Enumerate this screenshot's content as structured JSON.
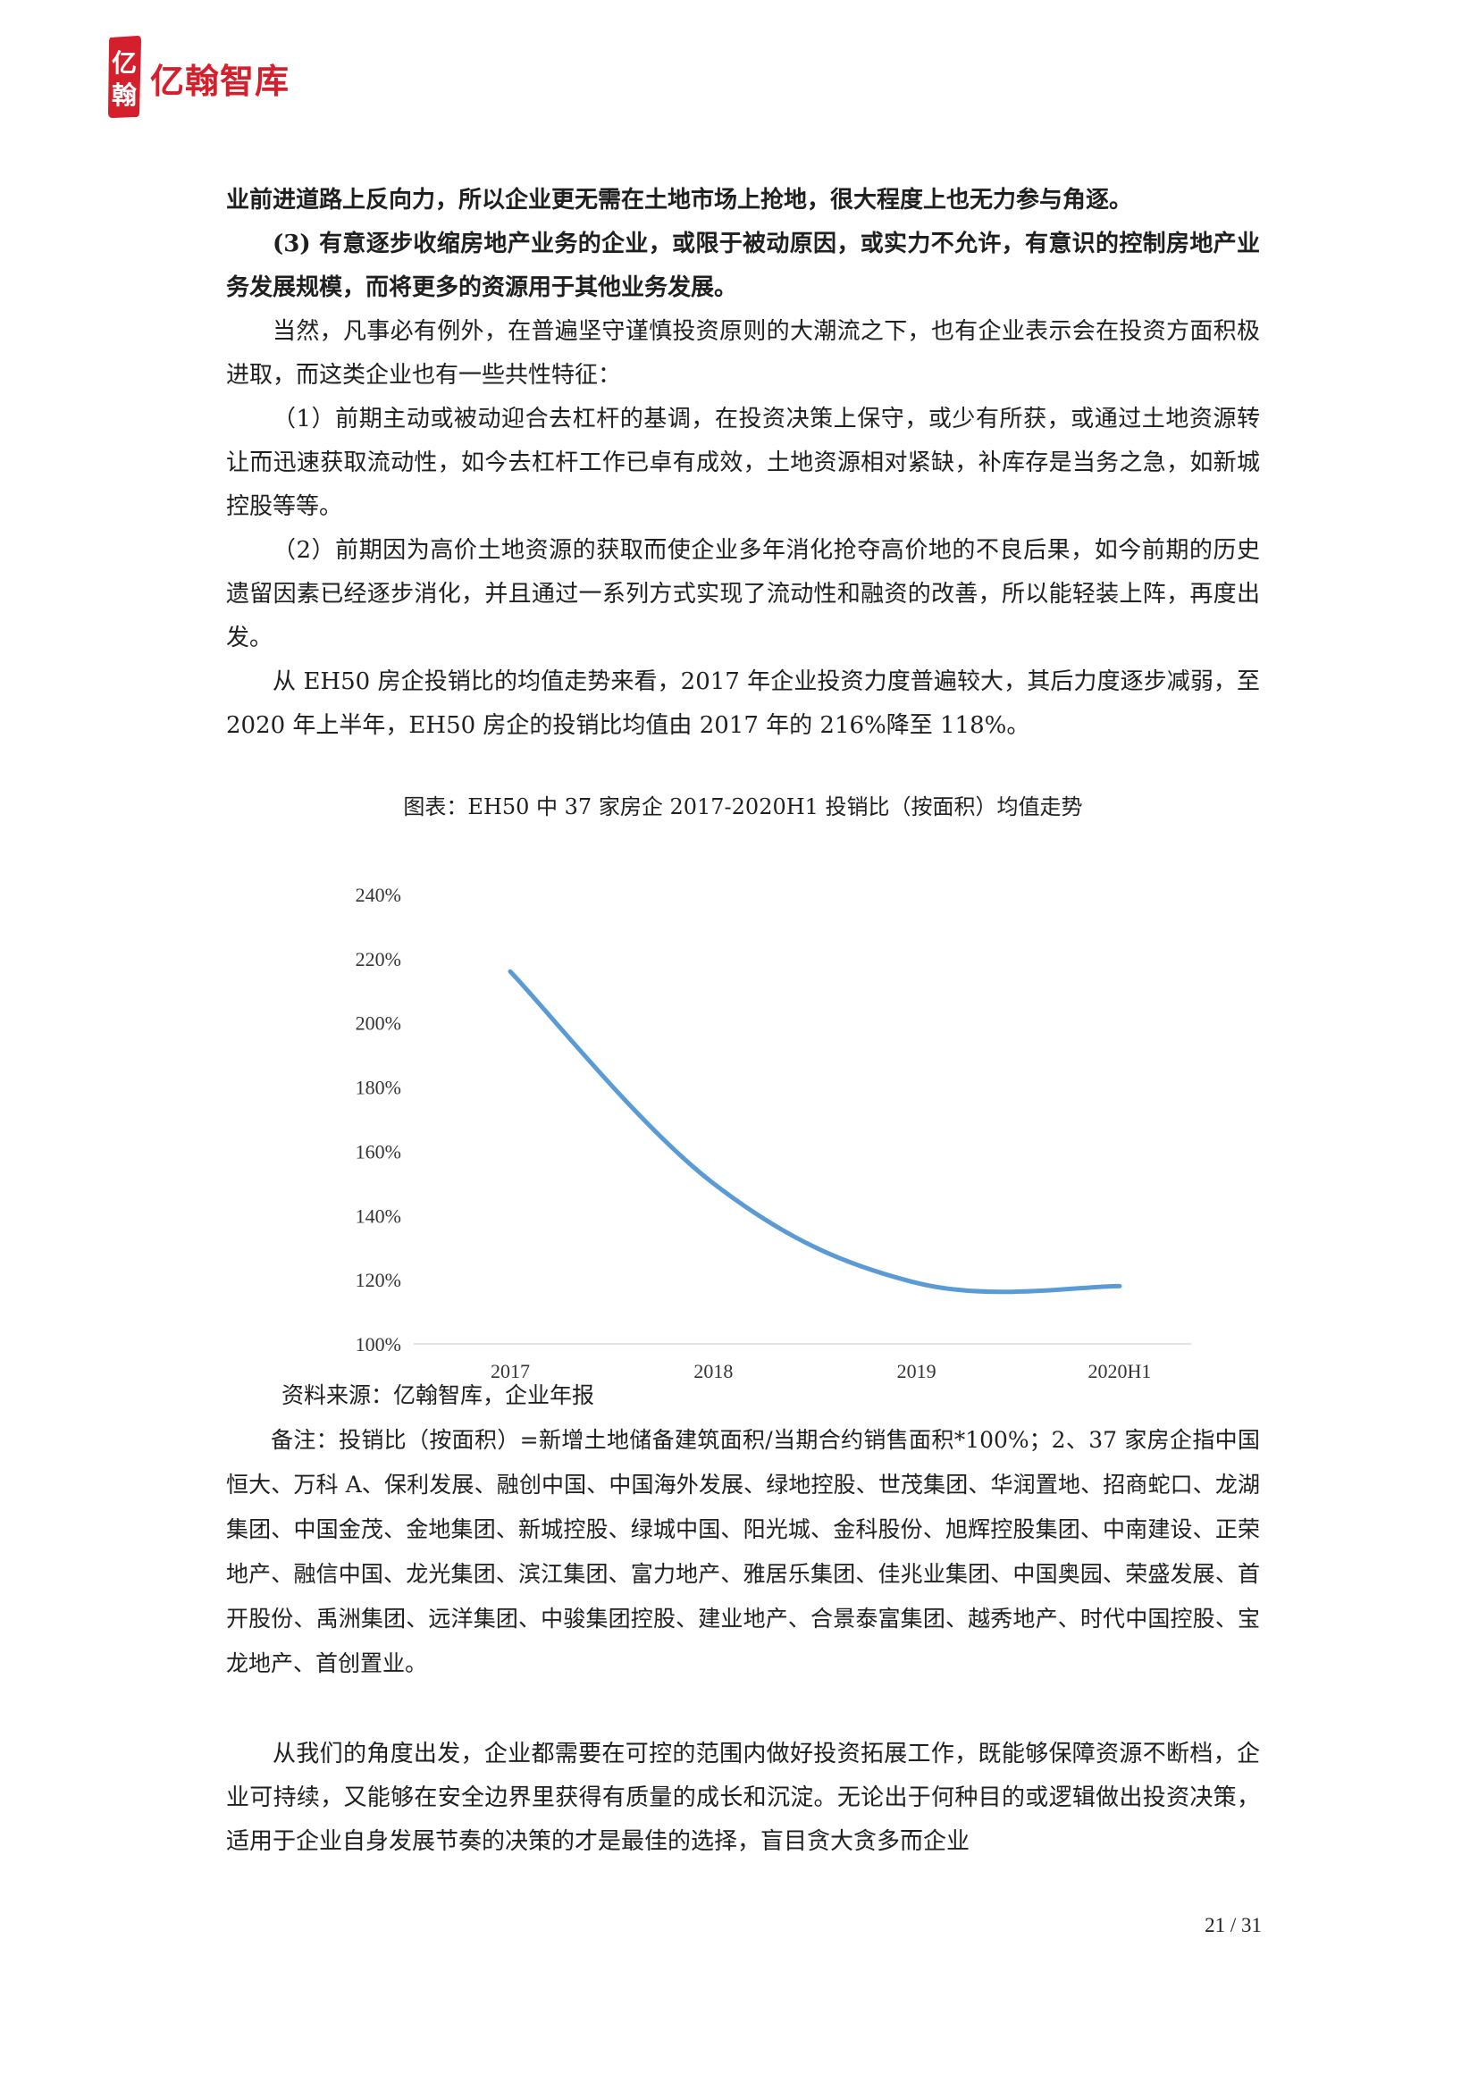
{
  "header": {
    "brand": "亿翰智库",
    "seal_text": "亿翰",
    "brand_color": "#d4202c"
  },
  "body": {
    "para1": "业前进道路上反向力，所以企业更无需在土地市场上抢地，很大程度上也无力参与角逐。",
    "para2": "(3) 有意逐步收缩房地产业务的企业，或限于被动原因，或实力不允许，有意识的控制房地产业务发展规模，而将更多的资源用于其他业务发展。",
    "para3": "当然，凡事必有例外，在普遍坚守谨慎投资原则的大潮流之下，也有企业表示会在投资方面积极进取，而这类企业也有一些共性特征：",
    "para4": "（1）前期主动或被动迎合去杠杆的基调，在投资决策上保守，或少有所获，或通过土地资源转让而迅速获取流动性，如今去杠杆工作已卓有成效，土地资源相对紧缺，补库存是当务之急，如新城控股等等。",
    "para5": "（2）前期因为高价土地资源的获取而使企业多年消化抢夺高价地的不良后果，如今前期的历史遗留因素已经逐步消化，并且通过一系列方式实现了流动性和融资的改善，所以能轻装上阵，再度出发。",
    "para6": "从 EH50 房企投销比的均值走势来看，2017 年企业投资力度普遍较大，其后力度逐步减弱，至 2020 年上半年，EH50 房企的投销比均值由 2017 年的 216%降至 118%。",
    "para7": "从我们的角度出发，企业都需要在可控的范围内做好投资拓展工作，既能够保障资源不断档，企业可持续，又能够在安全边界里获得有质量的成长和沉淀。无论出于何种目的或逻辑做出投资决策，适用于企业自身发展节奏的决策的才是最佳的选择，盲目贪大贪多而企业"
  },
  "chart_caption": "图表：EH50 中 37 家房企 2017-2020H1 投销比（按面积）均值走势",
  "chart_data": {
    "type": "line",
    "title": "",
    "xlabel": "",
    "ylabel": "",
    "categories": [
      "2017",
      "2018",
      "2019",
      "2020H1"
    ],
    "series": [
      {
        "values": [
          216,
          150,
          119,
          118
        ]
      }
    ],
    "ylim": [
      100,
      240
    ],
    "y_ticks": [
      "240%",
      "220%",
      "200%",
      "180%",
      "160%",
      "140%",
      "120%",
      "100%"
    ],
    "y_tick_values": [
      240,
      220,
      200,
      180,
      160,
      140,
      120,
      100
    ],
    "smooth": true,
    "line_color": "#5b9bd5",
    "grid": false,
    "legend": "none"
  },
  "notes": {
    "source": "资料来源：亿翰智库，企业年报",
    "remark": "备注：投销比（按面积）=新增土地储备建筑面积/当期合约销售面积*100%；2、37 家房企指中国恒大、万科 A、保利发展、融创中国、中国海外发展、绿地控股、世茂集团、华润置地、招商蛇口、龙湖集团、中国金茂、金地集团、新城控股、绿城中国、阳光城、金科股份、旭辉控股集团、中南建设、正荣地产、融信中国、龙光集团、滨江集团、富力地产、雅居乐集团、佳兆业集团、中国奥园、荣盛发展、首开股份、禹洲集团、远洋集团、中骏集团控股、建业地产、合景泰富集团、越秀地产、时代中国控股、宝龙地产、首创置业。"
  },
  "footer": {
    "page_number": "21 / 31"
  }
}
